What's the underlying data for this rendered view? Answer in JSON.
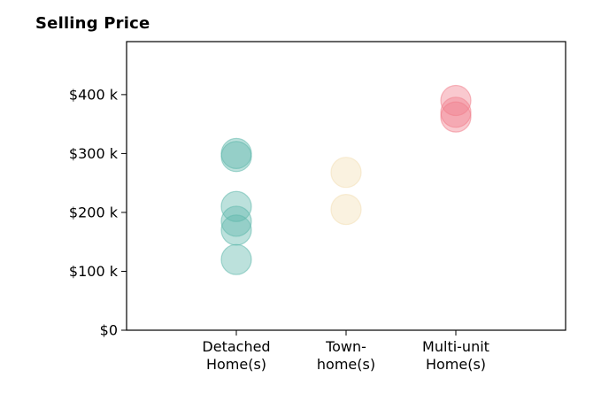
{
  "chart_data": {
    "type": "scatter",
    "title": "Selling Price",
    "categories": [
      [
        "Detached",
        "Home(s)"
      ],
      [
        "Town-",
        "home(s)"
      ],
      [
        "Multi-unit",
        "Home(s)"
      ]
    ],
    "y_ticks": [
      "$0",
      "$100 k",
      "$200 k",
      "$300 k",
      "$400 k"
    ],
    "y_tick_values": [
      0,
      100000,
      200000,
      300000,
      400000
    ],
    "ylim": [
      0,
      490000
    ],
    "xlim": [
      -1,
      3
    ],
    "grid": false,
    "series": [
      {
        "category_index": 0,
        "color": "#5fb8ac",
        "values": [
          300000,
          295000,
          210000,
          185000,
          170000,
          120000
        ]
      },
      {
        "category_index": 1,
        "color": "#f2dfb5",
        "values": [
          268000,
          205000
        ]
      },
      {
        "category_index": 2,
        "color": "#f07f8c",
        "values": [
          390000,
          370000,
          362000
        ]
      }
    ]
  }
}
